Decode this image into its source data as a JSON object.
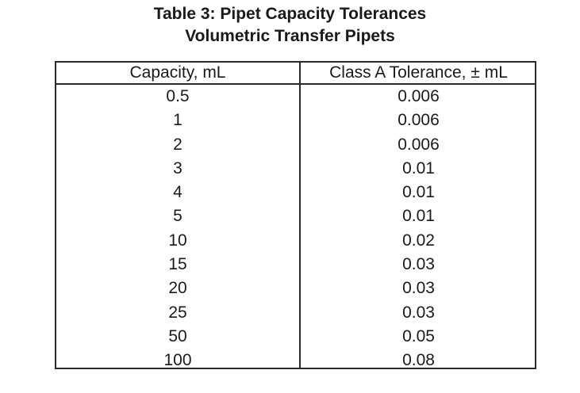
{
  "title": {
    "line1": "Table 3: Pipet Capacity Tolerances",
    "line2": "Volumetric Transfer Pipets"
  },
  "table": {
    "headers": [
      "Capacity, mL",
      "Class A Tolerance, ± mL"
    ],
    "rows": [
      {
        "capacity": "0.5",
        "tolerance": "0.006"
      },
      {
        "capacity": "1",
        "tolerance": "0.006"
      },
      {
        "capacity": "2",
        "tolerance": "0.006"
      },
      {
        "capacity": "3",
        "tolerance": "0.01"
      },
      {
        "capacity": "4",
        "tolerance": "0.01"
      },
      {
        "capacity": "5",
        "tolerance": "0.01"
      },
      {
        "capacity": "10",
        "tolerance": "0.02"
      },
      {
        "capacity": "15",
        "tolerance": "0.03"
      },
      {
        "capacity": "20",
        "tolerance": "0.03"
      },
      {
        "capacity": "25",
        "tolerance": "0.03"
      },
      {
        "capacity": "50",
        "tolerance": "0.05"
      },
      {
        "capacity": "100",
        "tolerance": "0.08"
      }
    ]
  }
}
